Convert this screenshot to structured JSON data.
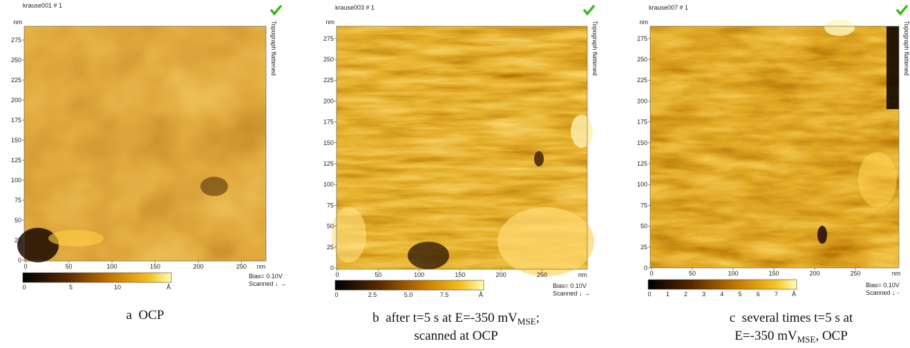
{
  "panels": [
    {
      "file": "krause001 # 1",
      "side_label": "Topograph flattened",
      "y_unit": "nm",
      "yticks": [
        "0",
        "25",
        "50",
        "75",
        "100",
        "125",
        "150",
        "175",
        "200",
        "225",
        "250",
        "275"
      ],
      "xticks": [
        "0",
        "50",
        "100",
        "150",
        "200",
        "250"
      ],
      "x_unit": "nm",
      "colorbar_ticks": [
        "0",
        "5",
        "10"
      ],
      "colorbar_unit": "Å",
      "bias": "Bias= 0.10V",
      "scanned": "Scanned ↓ →",
      "caption": [
        [
          {
            "t": "a  OCP"
          }
        ]
      ]
    },
    {
      "file": "krause003 # 1",
      "side_label": "Topograph flattened",
      "y_unit": "nm",
      "yticks": [
        "0",
        "25",
        "50",
        "75",
        "100",
        "125",
        "150",
        "175",
        "200",
        "225",
        "250",
        "275"
      ],
      "xticks": [
        "0",
        "50",
        "100",
        "150",
        "200",
        "250"
      ],
      "x_unit": "nm",
      "colorbar_ticks": [
        "0",
        "2.5",
        "5.0",
        "7.5"
      ],
      "colorbar_unit": "Å",
      "bias": "Bias= 0.10V",
      "scanned": "Scanned ↓ →",
      "caption": [
        [
          {
            "t": "b  after t=5 s at E=-350 mV"
          },
          {
            "sub": "MSE"
          },
          {
            "t": ";"
          }
        ],
        [
          {
            "t": "scanned at OCP"
          }
        ]
      ]
    },
    {
      "file": "krause007 # 1",
      "side_label": "Topograph flattened",
      "y_unit": "nm",
      "yticks": [
        "0",
        "25",
        "50",
        "75",
        "100",
        "125",
        "150",
        "175",
        "200",
        "225",
        "250",
        "275"
      ],
      "xticks": [
        "0",
        "50",
        "100",
        "150",
        "200",
        "250"
      ],
      "x_unit": "nm",
      "colorbar_ticks": [
        "0",
        "1",
        "2",
        "3",
        "4",
        "5",
        "6",
        "7"
      ],
      "colorbar_unit": "Å",
      "bias": "Bias= 0.10V",
      "scanned": "Scanned ↓ -",
      "caption": [
        [
          {
            "t": "c  several times t=5 s at"
          }
        ],
        [
          {
            "t": "E=-350 mV"
          },
          {
            "sub": "MSE"
          },
          {
            "t": ", OCP"
          }
        ]
      ]
    }
  ]
}
